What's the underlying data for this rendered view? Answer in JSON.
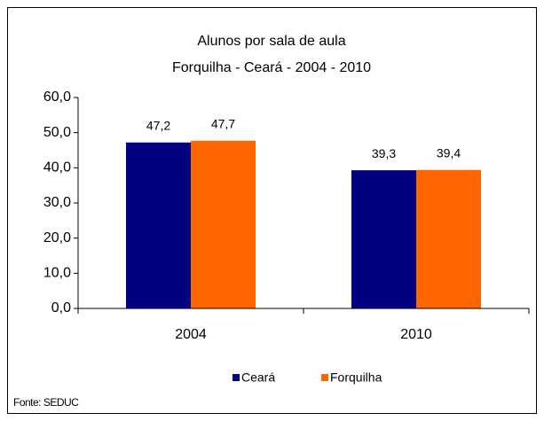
{
  "chart_data": {
    "type": "bar",
    "title": "Alunos por sala de aula",
    "subtitle": "Forquilha - Ceará - 2004 - 2010",
    "categories": [
      "2004",
      "2010"
    ],
    "series": [
      {
        "name": "Ceará",
        "color": "#000080",
        "values": [
          47.2,
          39.3
        ],
        "value_labels": [
          "47,2",
          "39,3"
        ]
      },
      {
        "name": "Forquilha",
        "color": "#ff6600",
        "values": [
          47.7,
          39.4
        ],
        "value_labels": [
          "47,7",
          "39,4"
        ]
      }
    ],
    "ylim": [
      0,
      60
    ],
    "yticks": [
      {
        "value": 0,
        "label": "0,0"
      },
      {
        "value": 10,
        "label": "10,0"
      },
      {
        "value": 20,
        "label": "20,0"
      },
      {
        "value": 30,
        "label": "30,0"
      },
      {
        "value": 40,
        "label": "40,0"
      },
      {
        "value": 50,
        "label": "50,0"
      },
      {
        "value": 60,
        "label": "60,0"
      }
    ],
    "grid": false,
    "legend": "bottom",
    "source": "Fonte: SEDUC"
  }
}
